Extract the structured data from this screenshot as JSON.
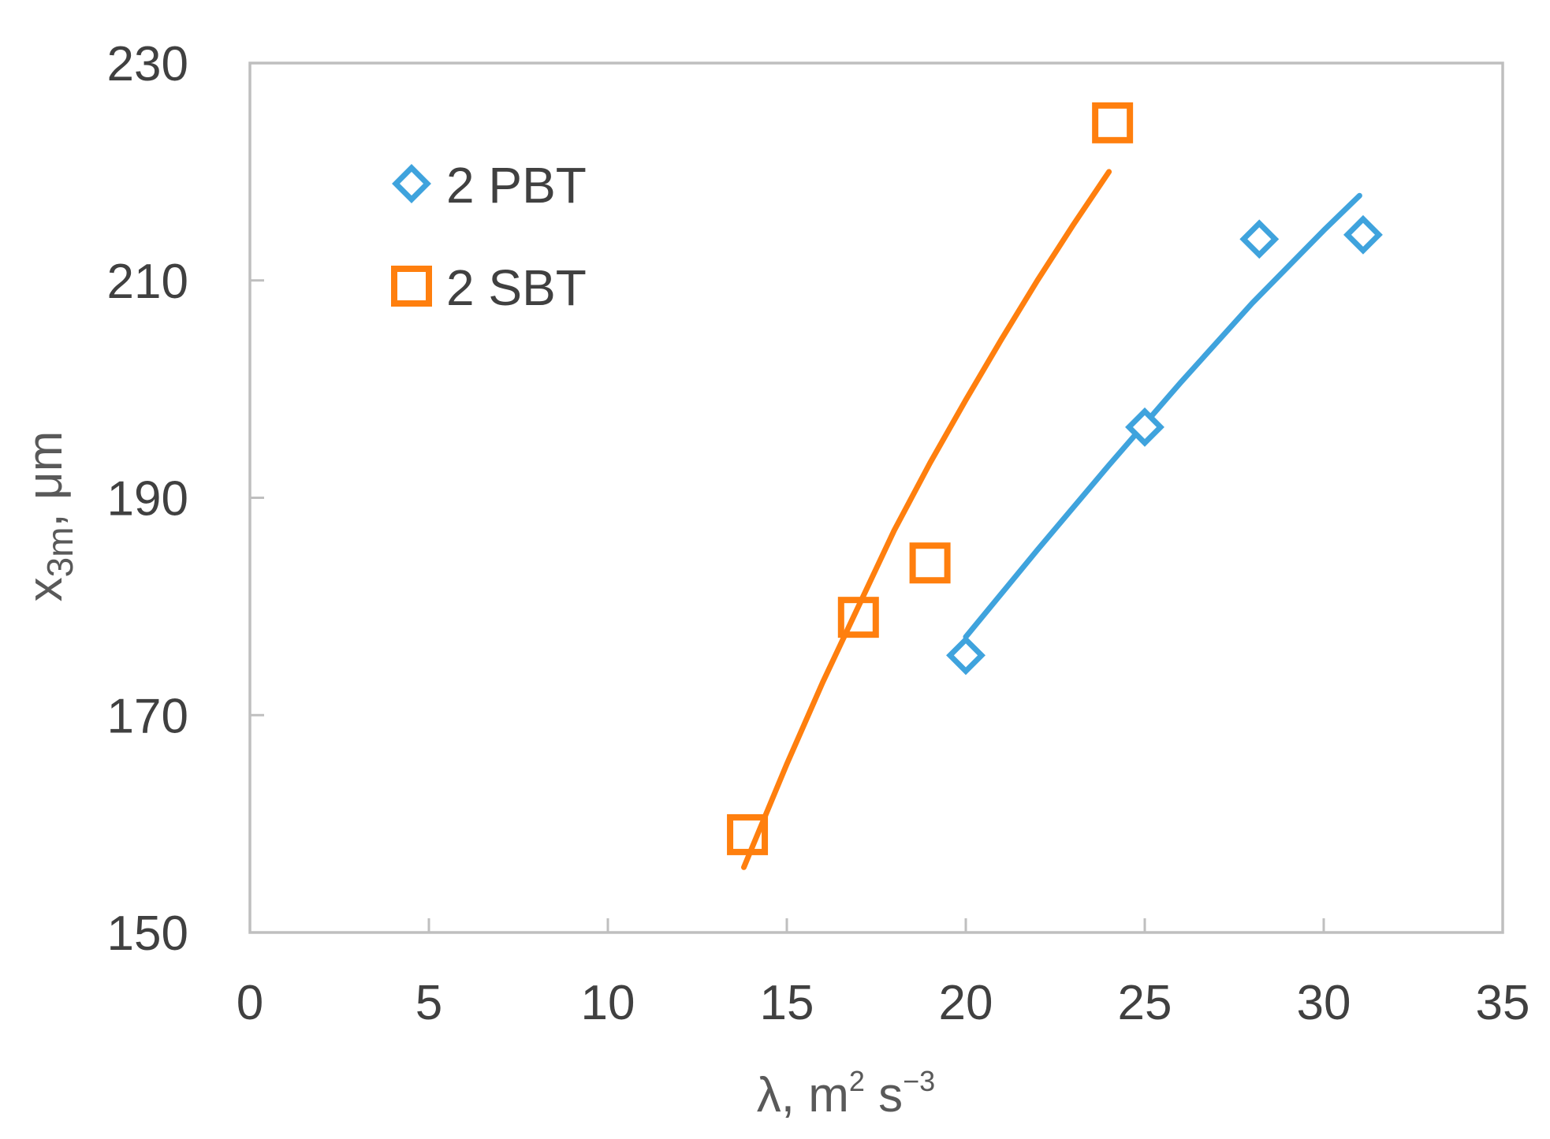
{
  "chart_data": {
    "type": "scatter",
    "xlabel": {
      "base": "λ, m",
      "sup1": "2",
      "mid": " s",
      "sup2": "−3"
    },
    "ylabel": {
      "base": "x",
      "sub": "3m",
      "rest": ", μm"
    },
    "xlim": [
      0,
      35
    ],
    "ylim": [
      150,
      230
    ],
    "x_ticks": [
      0,
      5,
      10,
      15,
      20,
      25,
      30,
      35
    ],
    "y_ticks": [
      150,
      170,
      190,
      210,
      230
    ],
    "grid": false,
    "legend_position": "top-left",
    "series": [
      {
        "name": "2 PBT",
        "marker": "diamond",
        "color": "#3fa3dd",
        "points": [
          {
            "x": 20.0,
            "y": 175.5
          },
          {
            "x": 25.0,
            "y": 196.5
          },
          {
            "x": 28.2,
            "y": 213.8
          },
          {
            "x": 31.1,
            "y": 214.2
          }
        ],
        "trendline": [
          {
            "x": 20.0,
            "y": 177.2
          },
          {
            "x": 22.0,
            "y": 185.2
          },
          {
            "x": 24.0,
            "y": 193.0
          },
          {
            "x": 26.0,
            "y": 200.6
          },
          {
            "x": 28.0,
            "y": 207.9
          },
          {
            "x": 30.0,
            "y": 214.6
          },
          {
            "x": 31.0,
            "y": 217.8
          }
        ]
      },
      {
        "name": "2 SBT",
        "marker": "square",
        "color": "#ff7f0e",
        "points": [
          {
            "x": 13.9,
            "y": 159.0
          },
          {
            "x": 17.0,
            "y": 179.0
          },
          {
            "x": 19.0,
            "y": 184.0
          },
          {
            "x": 24.1,
            "y": 224.5
          }
        ],
        "trendline": [
          {
            "x": 13.8,
            "y": 156.0
          },
          {
            "x": 15.0,
            "y": 165.5
          },
          {
            "x": 16.0,
            "y": 173.0
          },
          {
            "x": 17.0,
            "y": 180.0
          },
          {
            "x": 18.0,
            "y": 187.0
          },
          {
            "x": 19.0,
            "y": 193.2
          },
          {
            "x": 20.0,
            "y": 199.0
          },
          {
            "x": 21.0,
            "y": 204.6
          },
          {
            "x": 22.0,
            "y": 210.0
          },
          {
            "x": 23.0,
            "y": 215.1
          },
          {
            "x": 24.0,
            "y": 220.0
          }
        ]
      }
    ]
  }
}
